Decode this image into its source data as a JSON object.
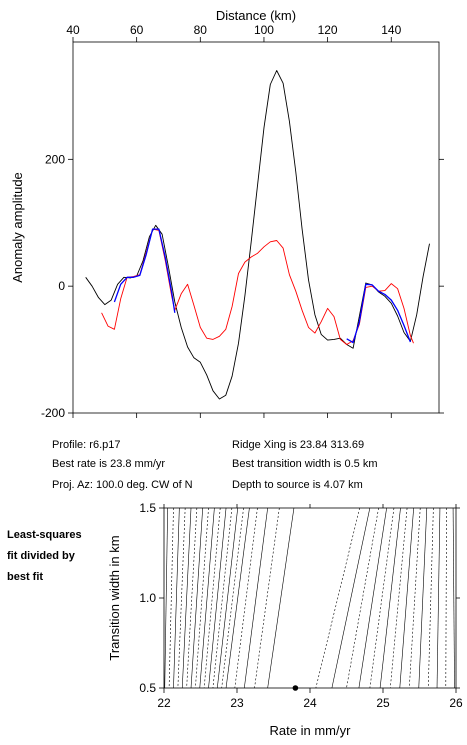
{
  "info": {
    "profile": "Profile: r6.p17",
    "ridge_xing": "Ridge Xing is 23.84 313.69",
    "best_rate": "Best rate is 23.8 mm/yr",
    "best_width": "Best transition width is 0.5 km",
    "proj_az": "Proj. Az: 100.0 deg. CW of N",
    "depth": "Depth to source is   4.07 km"
  },
  "side_note": [
    "Least-squares",
    "fit divided by",
    "best fit"
  ],
  "colors": {
    "observed": "#000000",
    "model": "#ff0000",
    "fit": "#0000ff",
    "grid": "#000000"
  },
  "chart_data": [
    {
      "type": "line",
      "title": "",
      "xlabel": "Distance (km)",
      "ylabel": "Anomaly amplitude",
      "xlim": [
        40,
        155
      ],
      "ylim": [
        -200,
        385
      ],
      "xticks": [
        40,
        60,
        80,
        100,
        120,
        140
      ],
      "yticks": [
        -200,
        0,
        200
      ],
      "x_axis_position": "top",
      "grid": false,
      "series": [
        {
          "key": "observed",
          "color": "#000000",
          "points": [
            [
              44,
              14
            ],
            [
              46,
              0
            ],
            [
              48,
              -18
            ],
            [
              50,
              -29
            ],
            [
              52,
              -22
            ],
            [
              54,
              3
            ],
            [
              56,
              14
            ],
            [
              58,
              13
            ],
            [
              60,
              16
            ],
            [
              62,
              40
            ],
            [
              64,
              78
            ],
            [
              66,
              96
            ],
            [
              68,
              82
            ],
            [
              70,
              30
            ],
            [
              72,
              -25
            ],
            [
              74,
              -65
            ],
            [
              76,
              -96
            ],
            [
              78,
              -113
            ],
            [
              80,
              -120
            ],
            [
              82,
              -140
            ],
            [
              84,
              -165
            ],
            [
              86,
              -178
            ],
            [
              88,
              -172
            ],
            [
              90,
              -142
            ],
            [
              92,
              -90
            ],
            [
              94,
              -15
            ],
            [
              96,
              70
            ],
            [
              98,
              160
            ],
            [
              100,
              250
            ],
            [
              102,
              318
            ],
            [
              104,
              340
            ],
            [
              106,
              320
            ],
            [
              108,
              260
            ],
            [
              110,
              180
            ],
            [
              112,
              90
            ],
            [
              114,
              10
            ],
            [
              116,
              -45
            ],
            [
              118,
              -76
            ],
            [
              120,
              -85
            ],
            [
              122,
              -84
            ],
            [
              124,
              -82
            ],
            [
              126,
              -92
            ],
            [
              128,
              -98
            ],
            [
              130,
              -47
            ],
            [
              132,
              5
            ],
            [
              134,
              2
            ],
            [
              136,
              -9
            ],
            [
              138,
              -16
            ],
            [
              140,
              -27
            ],
            [
              142,
              -47
            ],
            [
              144,
              -73
            ],
            [
              146,
              -87
            ],
            [
              148,
              -45
            ],
            [
              150,
              15
            ],
            [
              152,
              67
            ]
          ]
        },
        {
          "key": "model",
          "color": "#ff0000",
          "points": [
            [
              49,
              -42
            ],
            [
              51,
              -63
            ],
            [
              53,
              -68
            ],
            [
              55,
              -20
            ],
            [
              57,
              14
            ],
            [
              59,
              15
            ],
            [
              61,
              18
            ],
            [
              63,
              53
            ],
            [
              65,
              90
            ],
            [
              67,
              88
            ],
            [
              69,
              40
            ],
            [
              71,
              -16
            ],
            [
              72,
              -38
            ],
            [
              74,
              -12
            ],
            [
              76,
              3
            ],
            [
              78,
              -30
            ],
            [
              80,
              -65
            ],
            [
              82,
              -82
            ],
            [
              84,
              -84
            ],
            [
              86,
              -79
            ],
            [
              88,
              -68
            ],
            [
              90,
              -32
            ],
            [
              92,
              20
            ],
            [
              94,
              38
            ],
            [
              96,
              46
            ],
            [
              98,
              52
            ],
            [
              100,
              62
            ],
            [
              102,
              70
            ],
            [
              104,
              72
            ],
            [
              106,
              60
            ],
            [
              108,
              18
            ],
            [
              110,
              -8
            ],
            [
              112,
              -38
            ],
            [
              114,
              -65
            ],
            [
              116,
              -74
            ],
            [
              118,
              -56
            ],
            [
              120,
              -35
            ],
            [
              122,
              -48
            ],
            [
              124,
              -84
            ],
            [
              126,
              -92
            ],
            [
              128,
              -86
            ],
            [
              130,
              -60
            ],
            [
              132,
              -2
            ],
            [
              134,
              0
            ],
            [
              136,
              -8
            ],
            [
              138,
              -7
            ],
            [
              140,
              4
            ],
            [
              142,
              -4
            ],
            [
              144,
              -35
            ],
            [
              146,
              -78
            ],
            [
              147,
              -90
            ]
          ]
        },
        {
          "key": "fit",
          "color": "#0000ff",
          "points": [
            [
              53,
              -25
            ],
            [
              55,
              3
            ],
            [
              57,
              14
            ],
            [
              59,
              14
            ],
            [
              61,
              17
            ],
            [
              63,
              50
            ],
            [
              65,
              90
            ],
            [
              67,
              90
            ],
            [
              69,
              45
            ],
            [
              71,
              -10
            ],
            [
              72,
              -42
            ],
            null,
            [
              126,
              -83
            ],
            [
              128,
              -89
            ],
            [
              130,
              -56
            ],
            [
              132,
              3
            ],
            [
              134,
              2
            ],
            [
              136,
              -8
            ],
            [
              138,
              -13
            ],
            [
              140,
              -22
            ],
            [
              142,
              -38
            ],
            [
              144,
              -62
            ],
            [
              146,
              -88
            ]
          ]
        }
      ]
    },
    {
      "type": "contour",
      "title": "",
      "xlabel": "Rate in mm/yr",
      "ylabel": "Transition width in km",
      "xlim": [
        22,
        26
      ],
      "ylim": [
        0.5,
        1.5
      ],
      "xticks": [
        22,
        23,
        24,
        25,
        26
      ],
      "yticks": [
        0.5,
        1.0,
        1.5
      ],
      "contour_rates_at_top": [
        22.05,
        22.13,
        22.21,
        22.29,
        22.37,
        22.45,
        22.53,
        22.61,
        22.69,
        22.77,
        22.85,
        22.93,
        23.01,
        23.09,
        23.17,
        23.28,
        23.42,
        23.58,
        23.78,
        24.68,
        24.82,
        24.94,
        25.05,
        25.15,
        25.24,
        25.33,
        25.42,
        25.51,
        25.6,
        25.69,
        25.78,
        25.87,
        25.96
      ],
      "contour_rates_at_bottom": [
        22.01,
        22.07,
        22.13,
        22.19,
        22.25,
        22.31,
        22.37,
        22.43,
        22.49,
        22.55,
        22.61,
        22.67,
        22.73,
        22.79,
        22.85,
        22.97,
        23.1,
        23.24,
        23.42,
        24.08,
        24.3,
        24.5,
        24.67,
        24.82,
        24.96,
        25.1,
        25.23,
        25.36,
        25.49,
        25.62,
        25.74,
        25.86,
        25.98
      ],
      "best_fit_point": {
        "x": 23.8,
        "y": 0.5
      }
    }
  ]
}
